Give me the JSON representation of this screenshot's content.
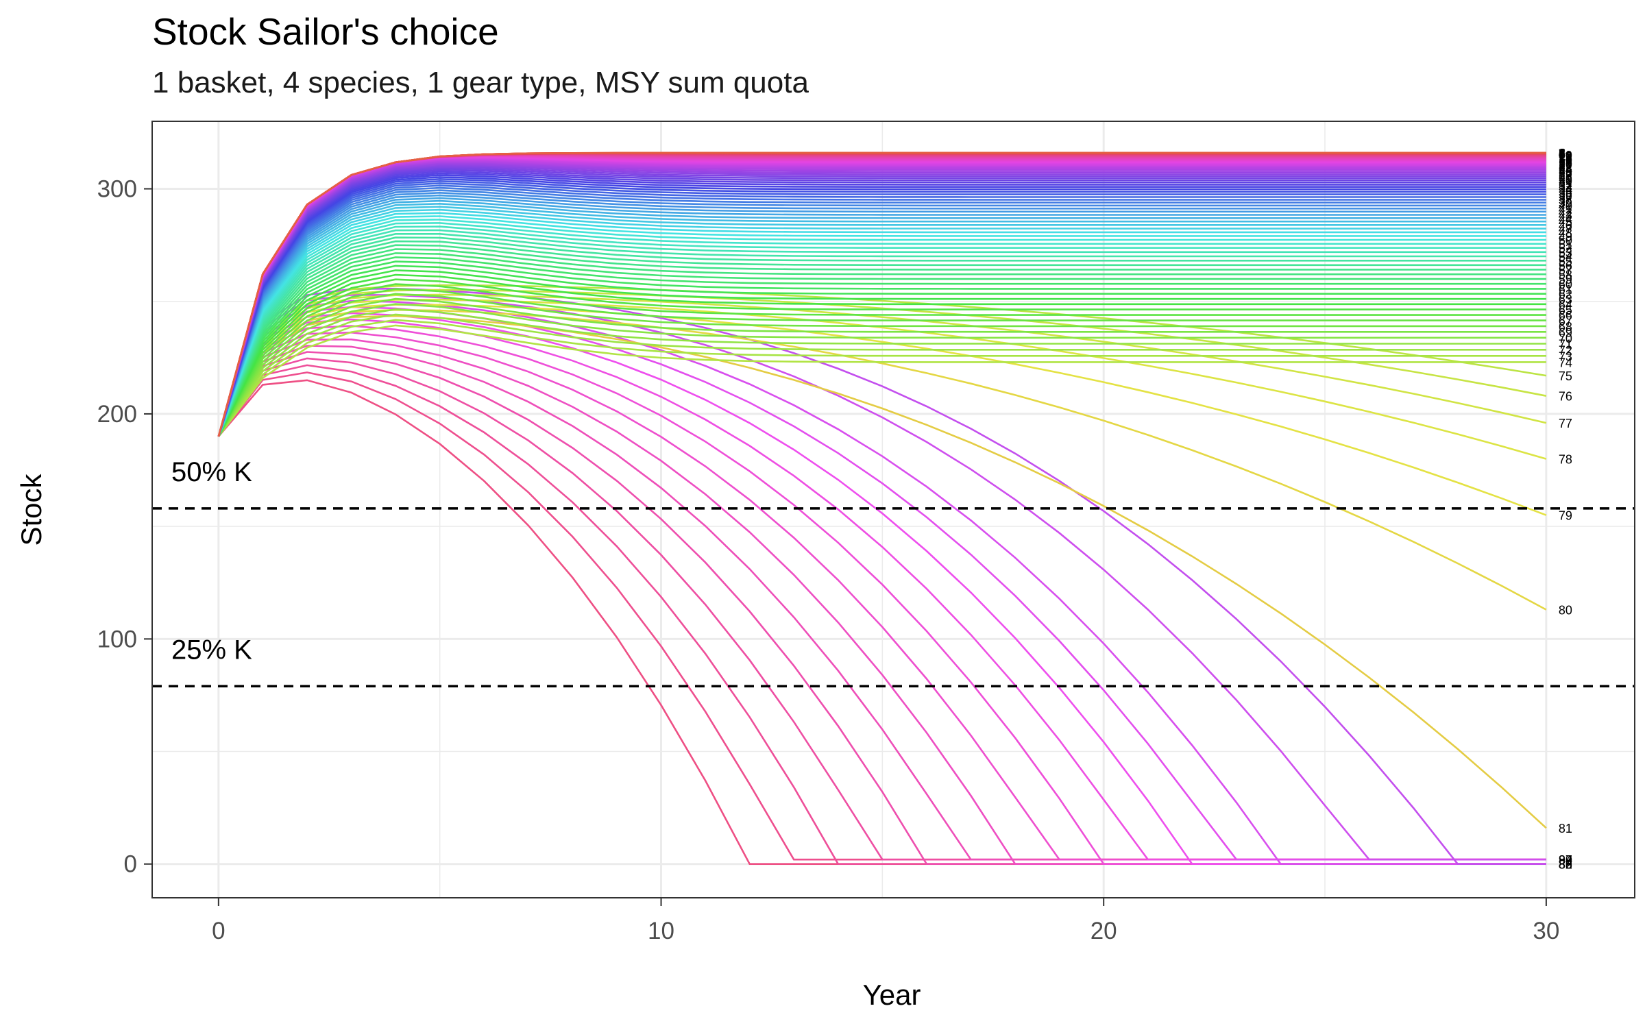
{
  "chart_data": {
    "type": "line",
    "title": "Stock Sailor's choice",
    "subtitle": "1 basket, 4 species, 1 gear type, MSY sum quota",
    "xlabel": "Year",
    "ylabel": "Stock",
    "xlim": [
      -1.5,
      32.0
    ],
    "ylim": [
      -15,
      330
    ],
    "x_ticks": [
      0,
      10,
      20,
      30
    ],
    "y_ticks": [
      0,
      100,
      200,
      300
    ],
    "grid": true,
    "legend": "none; each series labelled at its right end",
    "reference_lines": [
      {
        "label": "50% K",
        "y": 158,
        "style": "dashed"
      },
      {
        "label": "25% K",
        "y": 79,
        "style": "dashed"
      }
    ],
    "series_count": 90,
    "series_label_range": [
      1,
      90
    ],
    "initial_stock": 190,
    "max_stock": 316,
    "series_final_values": [
      {
        "name": "75",
        "year": 30,
        "value": 217
      },
      {
        "name": "76",
        "year": 30,
        "value": 208
      },
      {
        "name": "77",
        "year": 30,
        "value": 196
      },
      {
        "name": "78",
        "year": 30,
        "value": 180
      },
      {
        "name": "79",
        "year": 30,
        "value": 155
      },
      {
        "name": "80",
        "year": 30,
        "value": 113
      },
      {
        "name": "81",
        "year": 30,
        "value": 16
      }
    ],
    "collapsed_series_collapse_years": [
      12,
      13,
      14,
      15,
      16,
      17,
      18,
      19,
      20,
      21,
      22,
      23,
      24,
      26,
      28
    ],
    "colors": {
      "high_stock": "#F8766D",
      "green": "#00BA38",
      "blue": "#619CFF",
      "magenta": "#F564E3",
      "reference_line": "#000000"
    }
  }
}
